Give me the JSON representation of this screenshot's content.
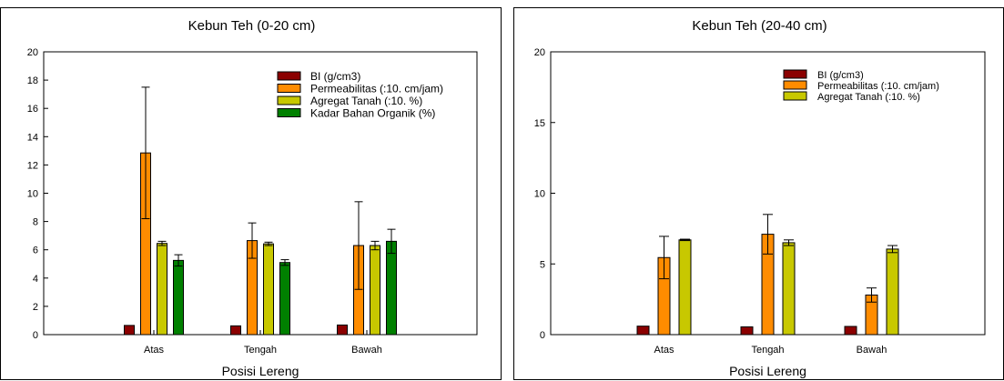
{
  "chart_data": [
    {
      "type": "bar",
      "title": "Kebun Teh (0-20 cm)",
      "xlabel": "Posisi Lereng",
      "ylabel": "",
      "categories": [
        "Atas",
        "Tengah",
        "Bawah"
      ],
      "ylim": [
        0,
        20
      ],
      "yticks": [
        0,
        2,
        4,
        6,
        8,
        10,
        12,
        14,
        16,
        18,
        20
      ],
      "legend_position": "top-right",
      "series": [
        {
          "name": "BI (g/cm3)",
          "color": "#8b0000",
          "values": [
            0.65,
            0.62,
            0.68
          ],
          "errors": [
            0,
            0,
            0
          ]
        },
        {
          "name": "Permeabilitas (:10. cm/jam)",
          "color": "#ff8c00",
          "values": [
            12.85,
            6.65,
            6.3
          ],
          "errors": [
            4.65,
            1.25,
            3.1
          ]
        },
        {
          "name": "Agregat Tanah (:10. %)",
          "color": "#c8c800",
          "values": [
            6.45,
            6.42,
            6.3
          ],
          "errors": [
            0.15,
            0.12,
            0.3
          ]
        },
        {
          "name": "Kadar Bahan Organik (%)",
          "color": "#008000",
          "values": [
            5.25,
            5.1,
            6.6
          ],
          "errors": [
            0.4,
            0.2,
            0.85
          ]
        }
      ]
    },
    {
      "type": "bar",
      "title": "Kebun Teh (20-40 cm)",
      "xlabel": "Posisi Lereng",
      "ylabel": "",
      "categories": [
        "Atas",
        "Tengah",
        "Bawah"
      ],
      "ylim": [
        0,
        20
      ],
      "yticks": [
        0,
        5,
        10,
        15,
        20
      ],
      "legend_position": "top-right",
      "series": [
        {
          "name": "BI (g/cm3)",
          "color": "#8b0000",
          "values": [
            0.6,
            0.55,
            0.58
          ],
          "errors": [
            0,
            0,
            0
          ]
        },
        {
          "name": "Permeabilitas (:10. cm/jam)",
          "color": "#ff8c00",
          "values": [
            5.45,
            7.1,
            2.8
          ],
          "errors": [
            1.5,
            1.4,
            0.5
          ]
        },
        {
          "name": "Agregat Tanah (:10. %)",
          "color": "#c8c800",
          "values": [
            6.7,
            6.5,
            6.05
          ],
          "errors": [
            0.05,
            0.2,
            0.25
          ]
        }
      ]
    }
  ]
}
